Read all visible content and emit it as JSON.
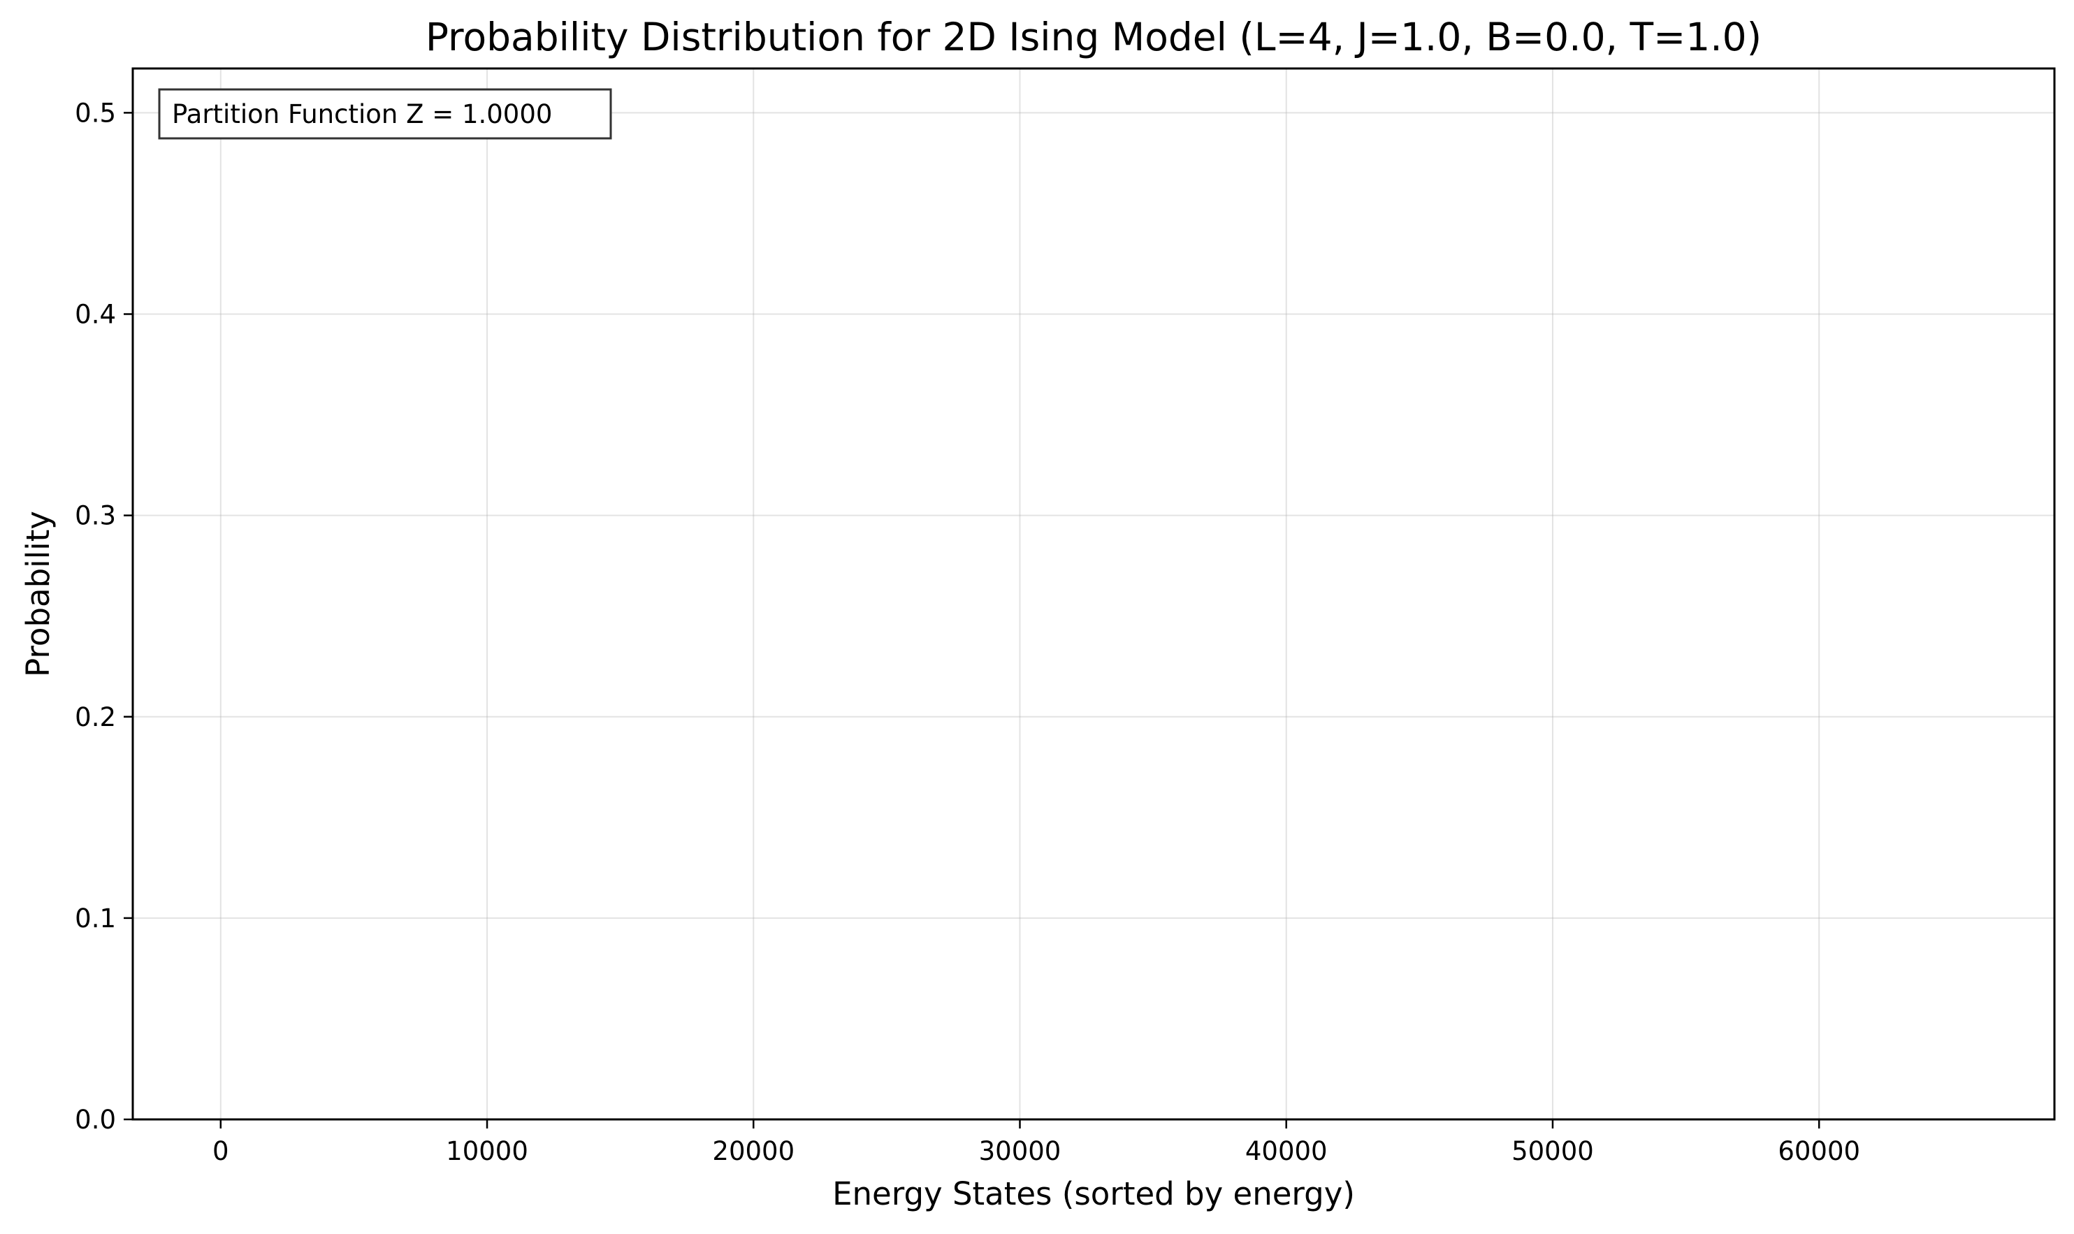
{
  "chart_data": {
    "type": "bar",
    "title": "Probability Distribution for 2D Ising Model (L=4, J=1.0, B=0.0, T=1.0)",
    "xlabel": "Energy States (sorted by energy)",
    "ylabel": "Probability",
    "xlim": [
      -3300,
      68835
    ],
    "ylim": [
      0.0,
      0.522
    ],
    "xticks": [
      0,
      10000,
      20000,
      30000,
      40000,
      50000,
      60000
    ],
    "xtick_labels": [
      "0",
      "10000",
      "20000",
      "30000",
      "40000",
      "50000",
      "60000"
    ],
    "yticks": [
      0.0,
      0.1,
      0.2,
      0.3,
      0.4,
      0.5
    ],
    "ytick_labels": [
      "0.0",
      "0.1",
      "0.2",
      "0.3",
      "0.4",
      "0.5"
    ],
    "grid": true,
    "series": [],
    "annotation": {
      "text": "Partition Function Z = 1.0000",
      "placement": "top-left"
    },
    "colors": {
      "grid": "#b0b0b0",
      "axes": "#000000",
      "annotation_border": "#333333"
    }
  }
}
